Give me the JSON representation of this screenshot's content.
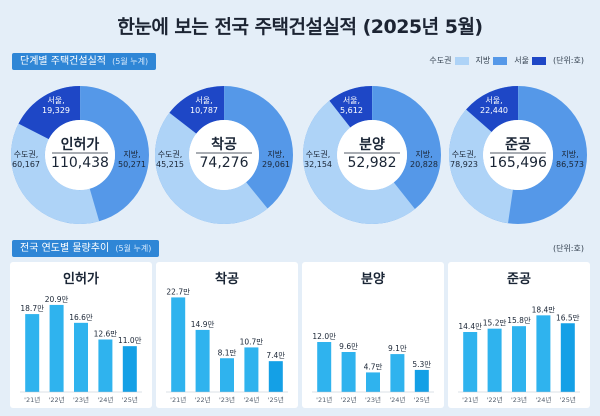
{
  "title": "한눈에 보는 전국 주택건설실적  (2025년 5월)",
  "section1": {
    "label": "단계별 주택건설실적",
    "sub": "(5월 누계)"
  },
  "legend": {
    "items": [
      {
        "label": "수도권",
        "color": "#aed3f7"
      },
      {
        "label": "지방",
        "color": "#5598e8"
      },
      {
        "label": "서울",
        "color": "#1e47c6"
      }
    ],
    "unit": "(단위:호)"
  },
  "section2": {
    "label": "전국 연도별 물량추이",
    "sub": "(5월 누계)",
    "unit": "(단위:호)"
  },
  "colors": {
    "metro": "#aed3f7",
    "local": "#5598e8",
    "seoul": "#1e47c6",
    "bar": "#2fb3ee",
    "bar_current": "#14a0e6",
    "panel_bg": "#ffffff"
  },
  "chart_data": [
    {
      "type": "pie",
      "title": "단계별 주택건설실적",
      "stages": [
        {
          "name": "인허가",
          "total": "110,438",
          "seoul_label": "서울,",
          "seoul": "19,329",
          "metro_label": "수도권,",
          "metro": "60,167",
          "local_label": "지방,",
          "local": "50,271",
          "values": {
            "seoul": 19329,
            "metro": 60167,
            "local": 50271
          }
        },
        {
          "name": "착공",
          "total": "74,276",
          "seoul_label": "서울,",
          "seoul": "10,787",
          "metro_label": "수도권,",
          "metro": "45,215",
          "local_label": "지방,",
          "local": "29,061",
          "values": {
            "seoul": 10787,
            "metro": 45215,
            "local": 29061
          }
        },
        {
          "name": "분양",
          "total": "52,982",
          "seoul_label": "서울,",
          "seoul": "5,612",
          "metro_label": "수도권,",
          "metro": "32,154",
          "local_label": "지방,",
          "local": "20,828",
          "values": {
            "seoul": 5612,
            "metro": 32154,
            "local": 20828
          }
        },
        {
          "name": "준공",
          "total": "165,496",
          "seoul_label": "서울,",
          "seoul": "22,440",
          "metro_label": "수도권,",
          "metro": "78,923",
          "local_label": "지방,",
          "local": "86,573",
          "values": {
            "seoul": 22440,
            "metro": 78923,
            "local": 86573
          }
        }
      ]
    },
    {
      "type": "bar",
      "title": "전국 연도별 물량추이",
      "categories": [
        "'21년",
        "'22년",
        "'23년",
        "'24년",
        "'25년"
      ],
      "ylim": [
        0,
        24
      ],
      "panels": [
        {
          "name": "인허가",
          "values": [
            18.7,
            20.9,
            16.6,
            12.6,
            11.0
          ],
          "labels": [
            "18.7만",
            "20.9만",
            "16.6만",
            "12.6만",
            "11.0만"
          ]
        },
        {
          "name": "착공",
          "values": [
            22.7,
            14.9,
            8.1,
            10.7,
            7.4
          ],
          "labels": [
            "22.7만",
            "14.9만",
            "8.1만",
            "10.7만",
            "7.4만"
          ]
        },
        {
          "name": "분양",
          "values": [
            12.0,
            9.6,
            4.7,
            9.1,
            5.3
          ],
          "labels": [
            "12.0만",
            "9.6만",
            "4.7만",
            "9.1만",
            "5.3만"
          ]
        },
        {
          "name": "준공",
          "values": [
            14.4,
            15.2,
            15.8,
            18.4,
            16.5
          ],
          "labels": [
            "14.4만",
            "15.2만",
            "15.8만",
            "18.4만",
            "16.5만"
          ]
        }
      ]
    }
  ]
}
